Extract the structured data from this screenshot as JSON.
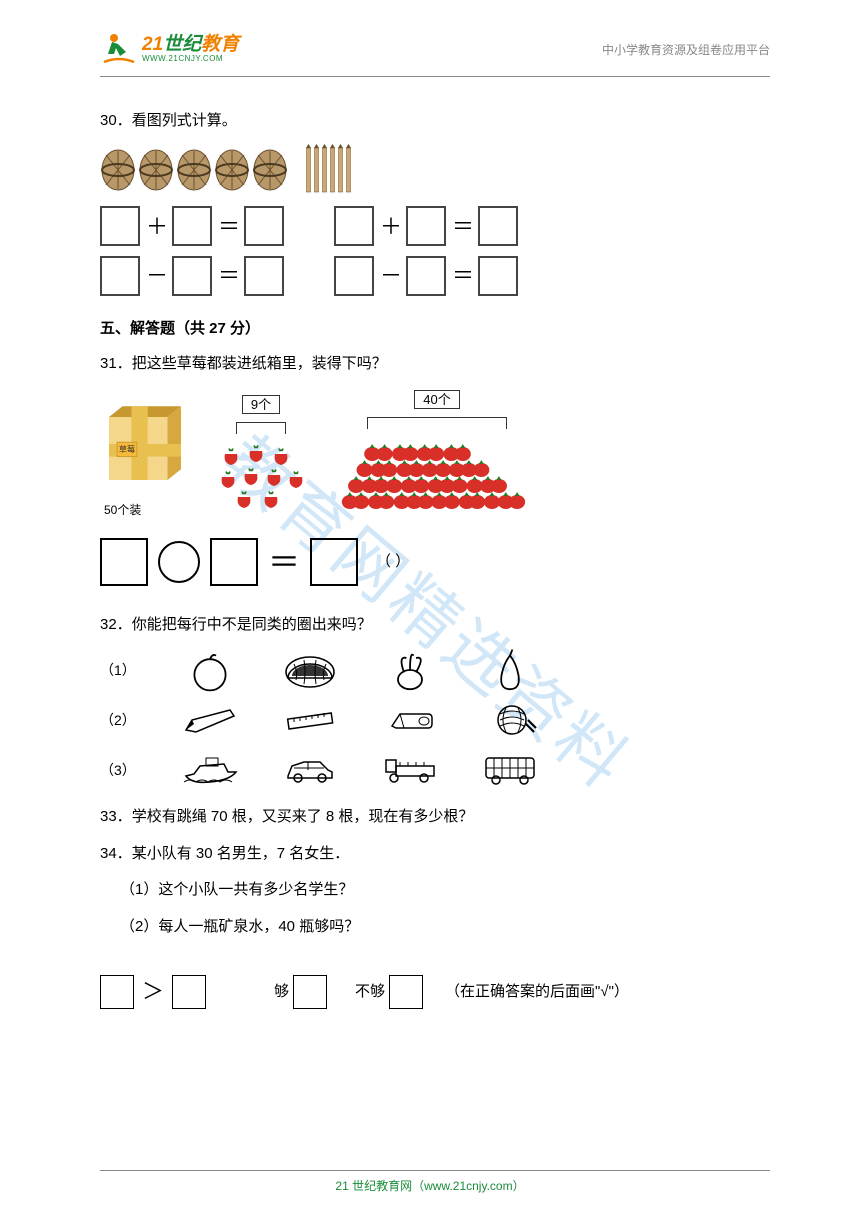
{
  "header": {
    "logo_main_1": "21",
    "logo_main_2": "世纪",
    "logo_main_3": "教育",
    "logo_sub": "WWW.21CNJY.COM",
    "right_text": "中小学教育资源及组卷应用平台"
  },
  "watermark": "教育网精选资料",
  "q30": {
    "num": "30．",
    "text": "看图列式计算。",
    "bundles": 5,
    "sticks": 6,
    "ops": {
      "plus": "＋",
      "minus": "－",
      "eq": "＝"
    }
  },
  "section5": {
    "title": "五、解答题（共 27 分）"
  },
  "q31": {
    "num": "31．",
    "text": "把这些草莓都装进纸箱里，装得下吗？",
    "carton_label_top": "草莓",
    "carton_label_bottom": "50个装",
    "label_small": "9个",
    "label_big": "40个",
    "unit": "（          ）",
    "eq_sign": "＝",
    "colors": {
      "carton_top": "#c89830",
      "carton_front": "#f4d78a",
      "carton_tape": "#e8c050",
      "berry": "#d83028"
    }
  },
  "q32": {
    "num": "32．",
    "text": "你能把每行中不是同类的圈出来吗？",
    "rows": [
      {
        "label": "（1）",
        "items": [
          "apple",
          "watermelon",
          "cabbage",
          "pear"
        ]
      },
      {
        "label": "（2）",
        "items": [
          "pencil",
          "ruler",
          "eraser",
          "yarn"
        ]
      },
      {
        "label": "（3）",
        "items": [
          "boat",
          "car",
          "truck",
          "bus"
        ]
      }
    ]
  },
  "q33": {
    "num": "33．",
    "text": "学校有跳绳 70 根，又买来了 8 根，现在有多少根？"
  },
  "q34": {
    "num": "34．",
    "text": "某小队有 30 名男生，7 名女生．",
    "sub1": "（1）这个小队一共有多少名学生？",
    "sub2": "（2）每人一瓶矿泉水，40 瓶够吗？",
    "gt": "＞",
    "enough": "够",
    "not_enough": "不够",
    "tail": "（在正确答案的后面画\"√\"）"
  },
  "footer": {
    "text_1": "21 世纪教育网（www.21cnjy.com）"
  }
}
